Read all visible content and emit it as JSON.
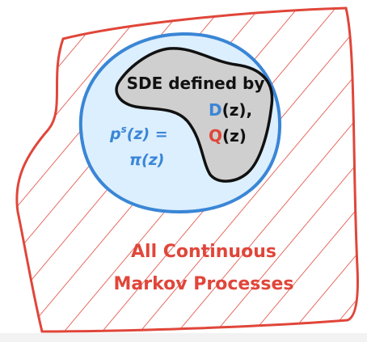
{
  "sde_label": {
    "line1": "SDE defined by",
    "d": "D",
    "d_arg": "(z),",
    "q": "Q",
    "q_arg": "(z)"
  },
  "stationary": {
    "p": "p",
    "s": "s",
    "rest": "(z) =",
    "line2": "π(z)"
  },
  "outer": {
    "line1": "All Continuous",
    "line2": "Markov Processes"
  }
}
